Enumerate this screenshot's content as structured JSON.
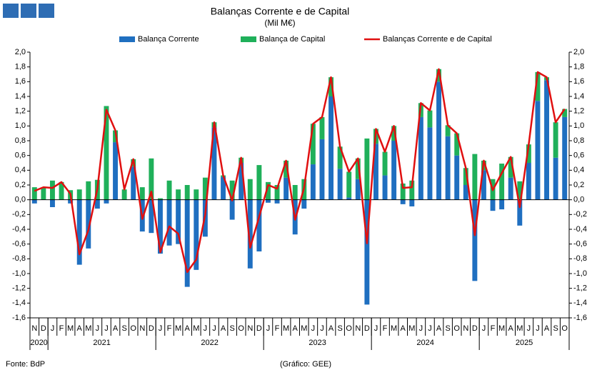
{
  "chart_data": {
    "type": "bar_line",
    "title": "Balanças Corrente e de Capital",
    "subtitle": "(Mil M€)",
    "source": "Fonte: BdP",
    "credit": "(Gráfico: GEE)",
    "categories": [
      "N",
      "D",
      "J",
      "F",
      "M",
      "A",
      "M",
      "J",
      "J",
      "A",
      "S",
      "O",
      "N",
      "D",
      "J",
      "F",
      "M",
      "A",
      "M",
      "J",
      "J",
      "A",
      "S",
      "O",
      "N",
      "D",
      "J",
      "F",
      "M",
      "A",
      "M",
      "J",
      "J",
      "A",
      "S",
      "O",
      "N",
      "D",
      "J",
      "F",
      "M",
      "A",
      "M",
      "J",
      "J",
      "A",
      "S",
      "O",
      "N",
      "D",
      "J",
      "F",
      "M",
      "A",
      "M",
      "J",
      "J",
      "A",
      "S",
      "O"
    ],
    "year_groups": [
      {
        "label": "2020",
        "months": 2
      },
      {
        "label": "2021",
        "months": 12
      },
      {
        "label": "2022",
        "months": 12
      },
      {
        "label": "2023",
        "months": 12
      },
      {
        "label": "2024",
        "months": 12
      },
      {
        "label": "2025",
        "months": 10
      }
    ],
    "series": [
      {
        "name": "Balança Corrente",
        "color": "#1f6fc0",
        "kind": "bar",
        "values": [
          -0.05,
          0.0,
          -0.1,
          0.0,
          -0.05,
          -0.88,
          -0.66,
          -0.12,
          -0.05,
          0.78,
          0.0,
          0.45,
          -0.43,
          -0.45,
          -0.73,
          -0.62,
          -0.6,
          -1.18,
          -0.95,
          -0.5,
          0.98,
          0.31,
          -0.27,
          0.5,
          -0.93,
          -0.7,
          -0.04,
          -0.05,
          0.3,
          -0.47,
          -0.12,
          0.48,
          0.82,
          1.4,
          0.42,
          0.03,
          0.28,
          -1.42,
          0.76,
          0.33,
          0.8,
          -0.06,
          -0.09,
          1.12,
          0.98,
          1.6,
          0.86,
          0.6,
          0.2,
          -1.1,
          0.4,
          -0.15,
          -0.13,
          0.3,
          -0.35,
          0.5,
          1.34,
          1.62,
          0.57,
          1.12
        ]
      },
      {
        "name": "Balança de Capital",
        "color": "#1fb05a",
        "kind": "bar",
        "values": [
          0.17,
          0.17,
          0.26,
          0.24,
          0.13,
          0.14,
          0.25,
          0.27,
          1.27,
          0.16,
          0.14,
          0.1,
          0.17,
          0.56,
          0.02,
          0.26,
          0.14,
          0.2,
          0.14,
          0.3,
          0.07,
          0.02,
          0.26,
          0.07,
          0.28,
          0.47,
          0.24,
          0.2,
          0.23,
          0.2,
          0.28,
          0.55,
          0.3,
          0.26,
          0.3,
          0.35,
          0.28,
          0.83,
          0.2,
          0.32,
          0.2,
          0.22,
          0.26,
          0.19,
          0.23,
          0.17,
          0.15,
          0.3,
          0.23,
          0.62,
          0.13,
          0.28,
          0.49,
          0.28,
          0.25,
          0.25,
          0.39,
          0.04,
          0.48,
          0.11
        ]
      },
      {
        "name": "Balanças Corrente e de Capital",
        "color": "#e01010",
        "kind": "line",
        "values": [
          0.12,
          0.17,
          0.16,
          0.24,
          0.08,
          -0.74,
          -0.41,
          0.15,
          1.22,
          0.94,
          0.14,
          0.55,
          -0.26,
          0.11,
          -0.71,
          -0.36,
          -0.46,
          -0.98,
          -0.81,
          -0.2,
          1.05,
          0.33,
          -0.01,
          0.57,
          -0.65,
          -0.23,
          0.2,
          0.15,
          0.53,
          -0.27,
          0.16,
          1.03,
          1.12,
          1.66,
          0.72,
          0.38,
          0.56,
          -0.59,
          0.96,
          0.65,
          1.0,
          0.16,
          0.17,
          1.31,
          1.21,
          1.77,
          1.01,
          0.9,
          0.43,
          -0.48,
          0.53,
          0.13,
          0.36,
          0.58,
          -0.1,
          0.75,
          1.73,
          1.66,
          1.05,
          1.23
        ]
      }
    ],
    "ylim": [
      -1.6,
      2.0
    ],
    "yticks": [
      {
        "value": -1.6,
        "label": "-1,6"
      },
      {
        "value": -1.4,
        "label": "-1,4"
      },
      {
        "value": -1.2,
        "label": "-1,2"
      },
      {
        "value": -1.0,
        "label": "-1,0"
      },
      {
        "value": -0.8,
        "label": "-0,8"
      },
      {
        "value": -0.6,
        "label": "-0,6"
      },
      {
        "value": -0.4,
        "label": "-0,4"
      },
      {
        "value": -0.2,
        "label": "-0,2"
      },
      {
        "value": 0,
        "label": "0,0"
      },
      {
        "value": 0.2,
        "label": "0,2"
      },
      {
        "value": 0.4,
        "label": "0,4"
      },
      {
        "value": 0.6,
        "label": "0,6"
      },
      {
        "value": 0.8,
        "label": "0,8"
      },
      {
        "value": 1.0,
        "label": "1,0"
      },
      {
        "value": 1.2,
        "label": "1,2"
      },
      {
        "value": 1.4,
        "label": "1,4"
      },
      {
        "value": 1.6,
        "label": "1,6"
      },
      {
        "value": 1.8,
        "label": "1,8"
      },
      {
        "value": 2.0,
        "label": "2,0"
      }
    ],
    "y2lim": [
      -1.6,
      2.0
    ],
    "y2ticks": [
      {
        "value": -1.6,
        "label": "-1,6"
      },
      {
        "value": -1.4,
        "label": "-1,4"
      },
      {
        "value": -1.2,
        "label": "-1,2"
      },
      {
        "value": -1.0,
        "label": "-1,0"
      },
      {
        "value": -0.8,
        "label": "-0,8"
      },
      {
        "value": -0.6,
        "label": "-0,6"
      },
      {
        "value": -0.4,
        "label": "-0,4"
      },
      {
        "value": -0.2,
        "label": "-0,2"
      },
      {
        "value": 0,
        "label": "0,0"
      },
      {
        "value": 0.2,
        "label": "0,2"
      },
      {
        "value": 0.4,
        "label": "0,4"
      },
      {
        "value": 0.6,
        "label": "0,6"
      },
      {
        "value": 0.8,
        "label": "0,8"
      },
      {
        "value": 1.0,
        "label": "1,0"
      },
      {
        "value": 1.2,
        "label": "1,2"
      },
      {
        "value": 1.4,
        "label": "1,4"
      },
      {
        "value": 1.6,
        "label": "1,6"
      },
      {
        "value": 1.8,
        "label": "1,8"
      },
      {
        "value": 2.0,
        "label": "2,0"
      }
    ],
    "grid": false,
    "legend": "top"
  }
}
